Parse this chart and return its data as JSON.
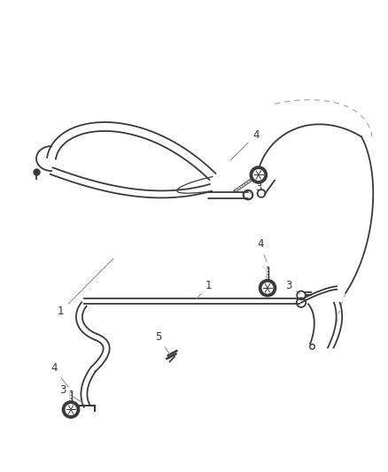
{
  "bg_color": "#ffffff",
  "line_color": "#3a3a3a",
  "dashed_color": "#aaaaaa",
  "label_color": "#333333",
  "figsize": [
    4.38,
    5.33
  ],
  "dpi": 100
}
